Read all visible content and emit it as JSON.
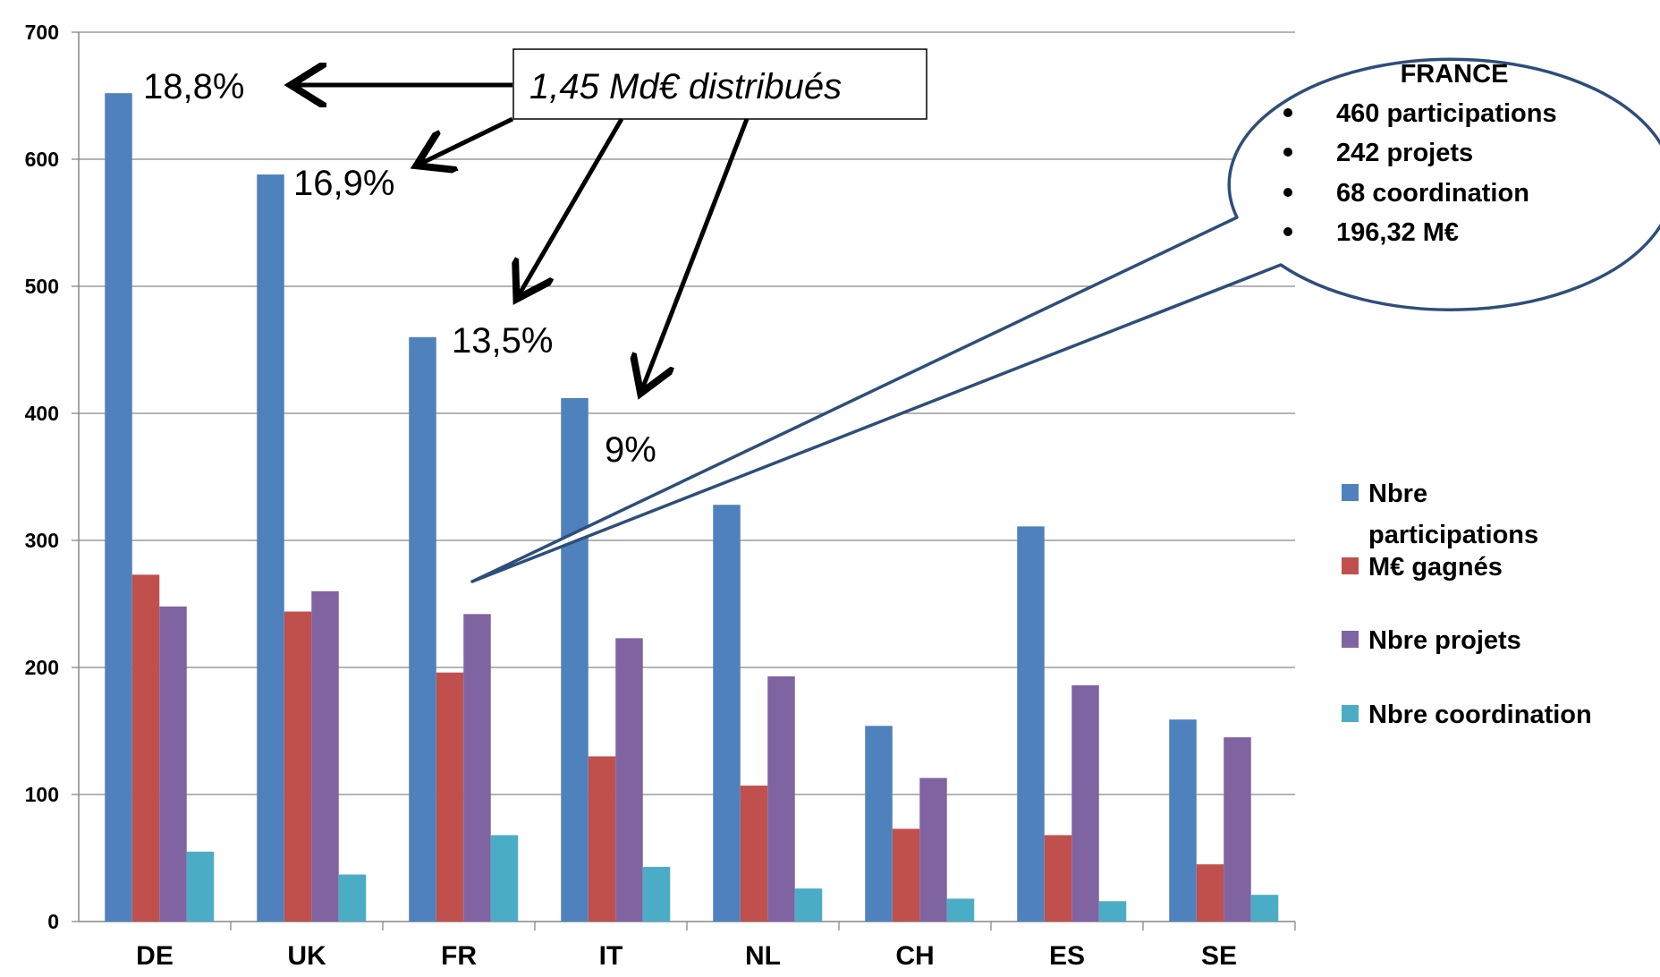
{
  "chart_data": {
    "type": "bar",
    "categories": [
      "DE",
      "UK",
      "FR",
      "IT",
      "NL",
      "CH",
      "ES",
      "SE"
    ],
    "series": [
      {
        "name": "Nbre participations",
        "color": "#4F81BD",
        "values": [
          652,
          588,
          460,
          412,
          328,
          154,
          311,
          159
        ]
      },
      {
        "name": "M€ gagnés",
        "color": "#C0504D",
        "values": [
          273,
          244,
          196,
          130,
          107,
          73,
          68,
          45
        ]
      },
      {
        "name": "Nbre projets",
        "color": "#8064A2",
        "values": [
          248,
          260,
          242,
          223,
          193,
          113,
          186,
          145
        ]
      },
      {
        "name": "Nbre coordination",
        "color": "#4BACC6",
        "values": [
          55,
          37,
          68,
          43,
          26,
          18,
          16,
          21
        ]
      }
    ],
    "ylim": [
      0,
      700
    ],
    "yticks": [
      "0",
      "100",
      "200",
      "300",
      "400",
      "500",
      "600",
      "700"
    ],
    "grid": true,
    "legend_position": "right",
    "annotations": {
      "percent_labels": [
        "18,8%",
        "16,9%",
        "13,5%",
        "9%"
      ],
      "note_box": "1,45 Md€ distribués",
      "callout": {
        "title": "FRANCE",
        "items": [
          "460 participations",
          "242 projets",
          "68 coordination",
          "196,32 M€"
        ]
      }
    }
  }
}
